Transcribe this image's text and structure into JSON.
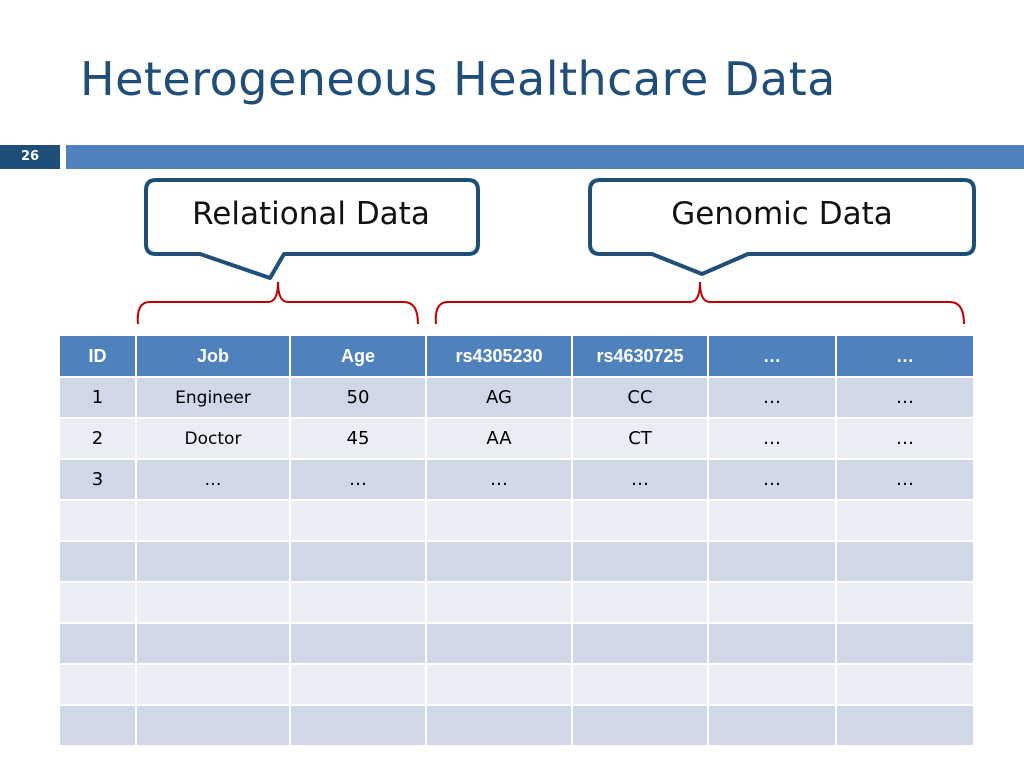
{
  "slide": {
    "title": "Heterogeneous Healthcare Data",
    "page_number": "26"
  },
  "callouts": {
    "relational": "Relational Data",
    "genomic": "Genomic Data"
  },
  "colors": {
    "title": "#1f4e79",
    "accent_bar": "#4f81bd",
    "page_box": "#1f4e79",
    "callout_border": "#1f4e79",
    "bracket": "#c00000",
    "table_header": "#4f81bd",
    "row_odd": "#d0d8e8",
    "row_even": "#e9edf4"
  },
  "table": {
    "headers": [
      "ID",
      "Job",
      "Age",
      "rs4305230",
      "rs4630725",
      "…",
      "…"
    ],
    "rows": [
      [
        "1",
        "Engineer",
        "50",
        "AG",
        "CC",
        "…",
        "…"
      ],
      [
        "2",
        "Doctor",
        "45",
        "AA",
        "CT",
        "…",
        "…"
      ],
      [
        "3",
        "…",
        "…",
        "…",
        "…",
        "…",
        "…"
      ],
      [
        "",
        "",
        "",
        "",
        "",
        "",
        ""
      ],
      [
        "",
        "",
        "",
        "",
        "",
        "",
        ""
      ],
      [
        "",
        "",
        "",
        "",
        "",
        "",
        ""
      ],
      [
        "",
        "",
        "",
        "",
        "",
        "",
        ""
      ],
      [
        "",
        "",
        "",
        "",
        "",
        "",
        ""
      ],
      [
        "",
        "",
        "",
        "",
        "",
        "",
        ""
      ]
    ]
  }
}
